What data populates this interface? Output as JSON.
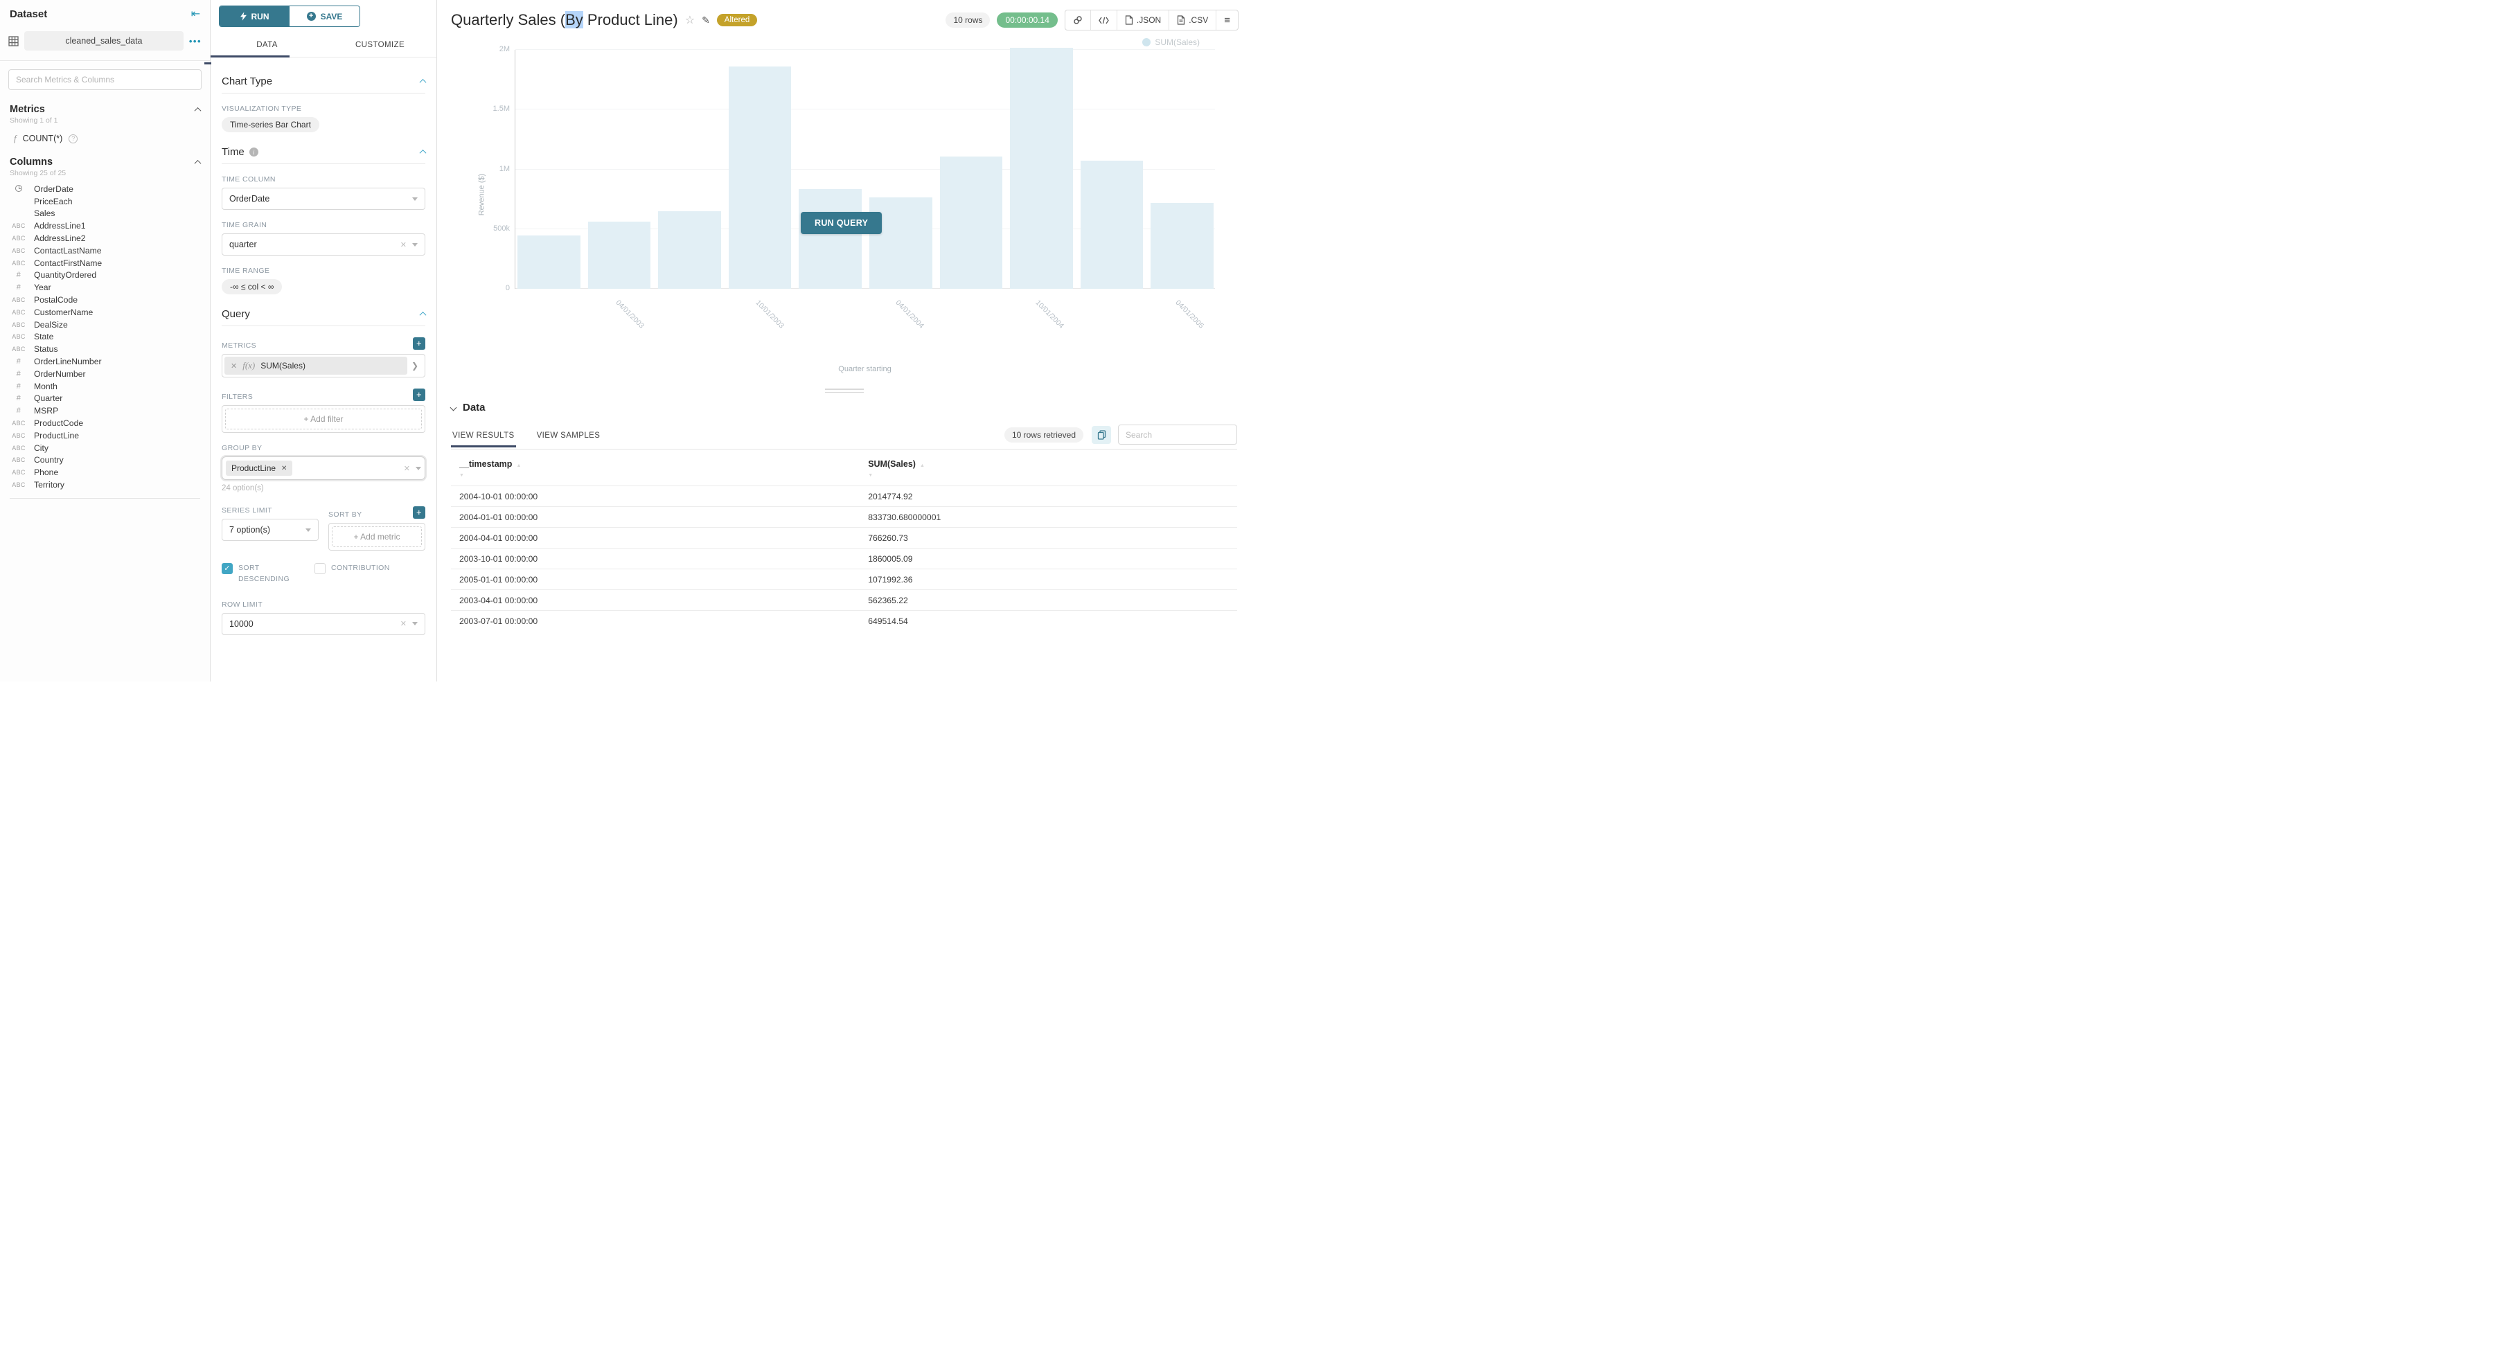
{
  "colors": {
    "primary_teal": "#36788e",
    "accent_teal": "#2496b5",
    "checkbox_teal": "#41a6c4",
    "ink_navy": "#3e4b66",
    "altered_gold": "#c4a22a",
    "timer_green": "#74be8c",
    "bar_fill": "#e2eff5",
    "selection_blue": "#b5d5fa"
  },
  "sidebar": {
    "title": "Dataset",
    "dataset_name": "cleaned_sales_data",
    "search_placeholder": "Search Metrics & Columns",
    "metrics": {
      "title": "Metrics",
      "showing": "Showing 1 of 1",
      "items": [
        {
          "icon": "function",
          "label": "COUNT(*)"
        }
      ]
    },
    "columns": {
      "title": "Columns",
      "showing": "Showing 25 of 25",
      "items": [
        {
          "type": "time",
          "name": "OrderDate"
        },
        {
          "type": "none",
          "name": "PriceEach"
        },
        {
          "type": "none",
          "name": "Sales"
        },
        {
          "type": "str",
          "name": "AddressLine1"
        },
        {
          "type": "str",
          "name": "AddressLine2"
        },
        {
          "type": "str",
          "name": "ContactLastName"
        },
        {
          "type": "str",
          "name": "ContactFirstName"
        },
        {
          "type": "num",
          "name": "QuantityOrdered"
        },
        {
          "type": "num",
          "name": "Year"
        },
        {
          "type": "str",
          "name": "PostalCode"
        },
        {
          "type": "str",
          "name": "CustomerName"
        },
        {
          "type": "str",
          "name": "DealSize"
        },
        {
          "type": "str",
          "name": "State"
        },
        {
          "type": "str",
          "name": "Status"
        },
        {
          "type": "num",
          "name": "OrderLineNumber"
        },
        {
          "type": "num",
          "name": "OrderNumber"
        },
        {
          "type": "num",
          "name": "Month"
        },
        {
          "type": "num",
          "name": "Quarter"
        },
        {
          "type": "num",
          "name": "MSRP"
        },
        {
          "type": "str",
          "name": "ProductCode"
        },
        {
          "type": "str",
          "name": "ProductLine"
        },
        {
          "type": "str",
          "name": "City"
        },
        {
          "type": "str",
          "name": "Country"
        },
        {
          "type": "str",
          "name": "Phone"
        },
        {
          "type": "str",
          "name": "Territory"
        }
      ]
    }
  },
  "controls": {
    "run_label": "RUN",
    "save_label": "SAVE",
    "tabs": [
      "DATA",
      "CUSTOMIZE"
    ],
    "active_tab": "DATA",
    "chart_type": {
      "section": "Chart Type",
      "viz_label": "VISUALIZATION TYPE",
      "viz_value": "Time-series Bar Chart"
    },
    "time": {
      "section": "Time",
      "column_label": "TIME COLUMN",
      "column_value": "OrderDate",
      "grain_label": "TIME GRAIN",
      "grain_value": "quarter",
      "range_label": "TIME RANGE",
      "range_value": "-∞ ≤ col < ∞"
    },
    "query": {
      "section": "Query",
      "metrics_label": "METRICS",
      "metric_prefix": "f(x)",
      "metric_value": "SUM(Sales)",
      "filters_label": "FILTERS",
      "add_filter": "+ Add filter",
      "groupby_label": "GROUP BY",
      "groupby_tag": "ProductLine",
      "groupby_hint": "24 option(s)",
      "series_limit_label": "SERIES LIMIT",
      "series_limit_value": "7 option(s)",
      "sortby_label": "SORT BY",
      "add_metric": "+ Add metric",
      "sort_desc_label": "SORT DESCENDING",
      "contribution_label": "CONTRIBUTION",
      "row_limit_label": "ROW LIMIT",
      "row_limit_value": "10000"
    }
  },
  "header": {
    "title_pre": "Quarterly Sales (",
    "title_selected": "By",
    "title_post": " Product Line)",
    "badge": "Altered",
    "rows_pill": "10 rows",
    "timer": "00:00:00.14",
    "export_json": ".JSON",
    "export_csv": ".CSV"
  },
  "chart": {
    "run_query_label": "RUN QUERY",
    "legend": "SUM(Sales)"
  },
  "chart_data": {
    "type": "bar",
    "title": "Quarterly Sales (By Product Line)",
    "xlabel": "Quarter starting",
    "ylabel": "Revenue ($)",
    "x": [
      "2003-01-01",
      "2003-04-01",
      "2003-07-01",
      "2003-10-01",
      "2004-01-01",
      "2004-04-01",
      "2004-07-01",
      "2004-10-01",
      "2005-01-01",
      "2005-04-01"
    ],
    "series": [
      {
        "name": "SUM(Sales)",
        "values": [
          445000,
          562365.22,
          649514.54,
          1860005.09,
          833730.68,
          766260.73,
          1110000,
          2014774.92,
          1071992.36,
          720000
        ]
      }
    ],
    "estimated_indices": [
      0,
      6,
      9
    ],
    "ylim": [
      0,
      2000000
    ],
    "yticks": [
      {
        "value": 0,
        "label": "0"
      },
      {
        "value": 500000,
        "label": "500k"
      },
      {
        "value": 1000000,
        "label": "1M"
      },
      {
        "value": 1500000,
        "label": "1.5M"
      },
      {
        "value": 2000000,
        "label": "2M"
      }
    ],
    "xticks": [
      {
        "index": 1,
        "label": "04/01/2003"
      },
      {
        "index": 3,
        "label": "10/01/2003"
      },
      {
        "index": 5,
        "label": "04/01/2004"
      },
      {
        "index": 7,
        "label": "10/01/2004"
      },
      {
        "index": 9,
        "label": "04/01/2005"
      }
    ],
    "grid": true,
    "legend_position": "top-right"
  },
  "datapanel": {
    "title": "Data",
    "tabs": [
      "VIEW RESULTS",
      "VIEW SAMPLES"
    ],
    "active_tab": "VIEW RESULTS",
    "rows_retrieved": "10 rows retrieved",
    "search_placeholder": "Search",
    "table": {
      "columns": [
        "__timestamp",
        "SUM(Sales)"
      ],
      "rows": [
        [
          "2004-10-01 00:00:00",
          "2014774.92"
        ],
        [
          "2004-01-01 00:00:00",
          "833730.680000001"
        ],
        [
          "2004-04-01 00:00:00",
          "766260.73"
        ],
        [
          "2003-10-01 00:00:00",
          "1860005.09"
        ],
        [
          "2005-01-01 00:00:00",
          "1071992.36"
        ],
        [
          "2003-04-01 00:00:00",
          "562365.22"
        ],
        [
          "2003-07-01 00:00:00",
          "649514.54"
        ]
      ]
    }
  }
}
